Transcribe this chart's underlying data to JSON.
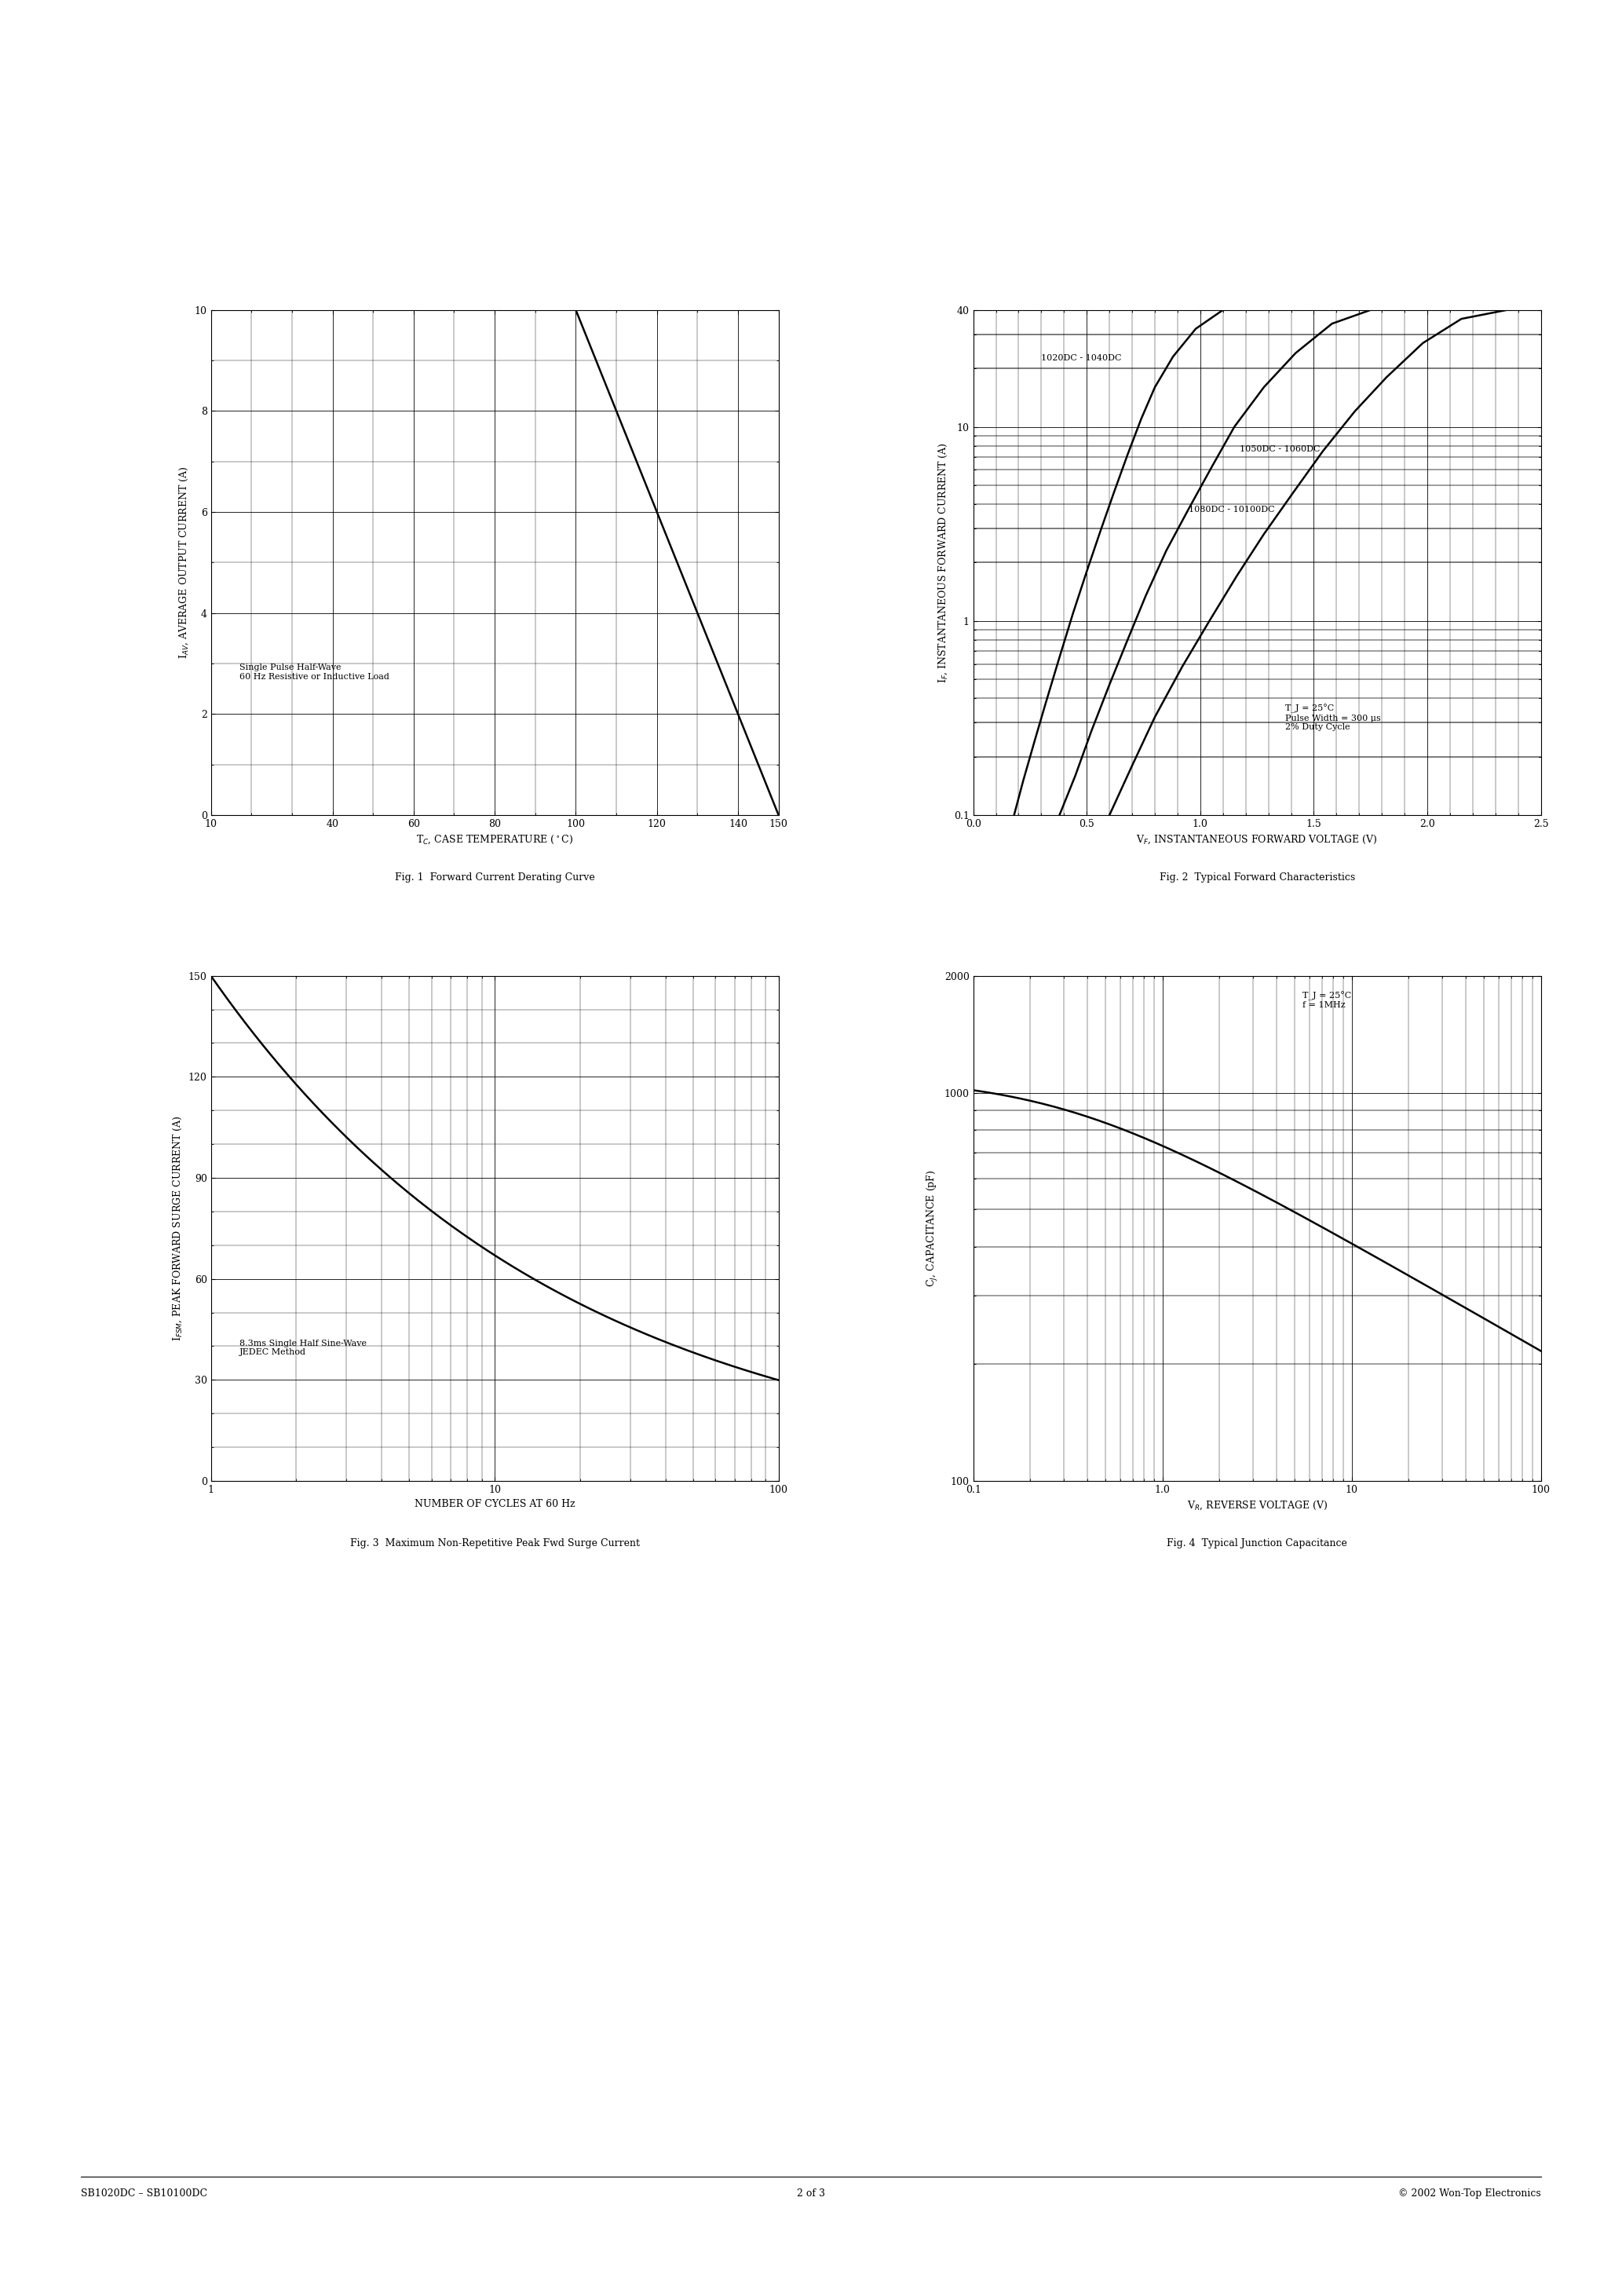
{
  "fig1": {
    "title": "Fig. 1  Forward Current Derating Curve",
    "xlabel": "T_C, CASE TEMPERATURE (°C)",
    "ylabel": "I_{AV}, AVERAGE OUTPUT CURRENT (A)",
    "annotation": "Single Pulse Half-Wave\n60 Hz Resistive or Inductive Load",
    "curve_x": [
      10,
      100,
      150
    ],
    "curve_y": [
      10,
      10,
      0
    ],
    "xlim": [
      10,
      150
    ],
    "ylim": [
      0,
      10
    ],
    "xticks": [
      10,
      40,
      60,
      80,
      100,
      120,
      140,
      150
    ],
    "yticks": [
      0,
      2,
      4,
      6,
      8,
      10
    ],
    "xminor": 10,
    "yminor": 1
  },
  "fig2": {
    "title": "Fig. 2  Typical Forward Characteristics",
    "xlabel": "V_F, INSTANTANEOUS FORWARD VOLTAGE (V)",
    "ylabel": "I_F, INSTANTANEOUS FORWARD CURRENT (A)",
    "annotation": "T_J = 25°C\nPulse Width = 300 μs\n2% Duty Cycle",
    "label1": "1020DC - 1040DC",
    "label2": "1050DC - 1060DC",
    "label3": "1080DC - 10100DC",
    "xlim": [
      0,
      2.5
    ],
    "ylim_log": [
      0.1,
      40
    ],
    "xticks": [
      0,
      0.5,
      1.0,
      1.5,
      2.0,
      2.5
    ],
    "yticks": [
      0.1,
      1,
      10,
      40
    ],
    "ytick_labels": [
      "0.1",
      "1",
      "10",
      "40"
    ]
  },
  "fig3": {
    "title": "Fig. 3  Maximum Non-Repetitive Peak Fwd Surge Current",
    "xlabel": "NUMBER OF CYCLES AT 60 Hz",
    "ylabel": "I_{FSM}, PEAK FORWARD SURGE CURRENT (A)",
    "annotation": "8.3ms Single Half Sine-Wave\nJEDEC Method",
    "xlim_log": [
      1,
      100
    ],
    "ylim": [
      0,
      150
    ],
    "yticks": [
      0,
      30,
      60,
      90,
      120,
      150
    ],
    "yminor": 10
  },
  "fig4": {
    "title": "Fig. 4  Typical Junction Capacitance",
    "xlabel": "V_R, REVERSE VOLTAGE (V)",
    "ylabel": "C_J, CAPACITANCE (pF)",
    "annotation": "T_J = 25°C\nf = 1MHz",
    "xlim_log": [
      0.1,
      100
    ],
    "ylim_log": [
      100,
      2000
    ],
    "yticks": [
      100,
      1000,
      2000
    ],
    "ytick_labels": [
      "100",
      "1000",
      "2000"
    ]
  },
  "footer_left": "SB1020DC – SB10100DC",
  "footer_center": "2 of 3",
  "footer_right": "© 2002 Won-Top Electronics"
}
